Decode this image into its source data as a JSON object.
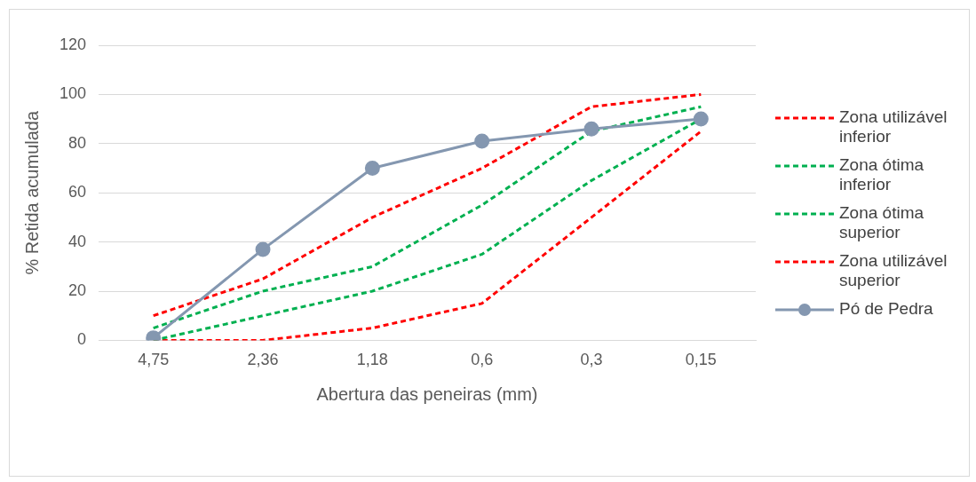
{
  "chart_data": {
    "type": "line",
    "xlabel": "Abertura das peneiras (mm)",
    "ylabel": "% Retida acumulada",
    "categories": [
      "4,75",
      "2,36",
      "1,18",
      "0,6",
      "0,3",
      "0,15"
    ],
    "ylim": [
      0,
      120
    ],
    "yticks": [
      0,
      20,
      40,
      60,
      80,
      100,
      120
    ],
    "grid": "y",
    "legend": "right",
    "series": [
      {
        "name": "Zona utilizável inferior",
        "color": "#ff0000",
        "line_style": "dashed",
        "marker": "none",
        "values": [
          0,
          0,
          5,
          15,
          50,
          85
        ]
      },
      {
        "name": "Zona ótima inferior",
        "color": "#00b050",
        "line_style": "dashed",
        "marker": "none",
        "values": [
          0,
          10,
          20,
          35,
          65,
          90
        ]
      },
      {
        "name": "Zona ótima superior",
        "color": "#00b050",
        "line_style": "dashed",
        "marker": "none",
        "values": [
          5,
          20,
          30,
          55,
          85,
          95
        ]
      },
      {
        "name": "Zona utilizável superior",
        "color": "#ff0000",
        "line_style": "dashed",
        "marker": "none",
        "values": [
          10,
          25,
          50,
          70,
          95,
          100
        ]
      },
      {
        "name": "Pó de Pedra",
        "color": "#8497b0",
        "line_style": "solid",
        "marker": "circle",
        "values": [
          1,
          37,
          70,
          81,
          86,
          90
        ]
      }
    ]
  }
}
